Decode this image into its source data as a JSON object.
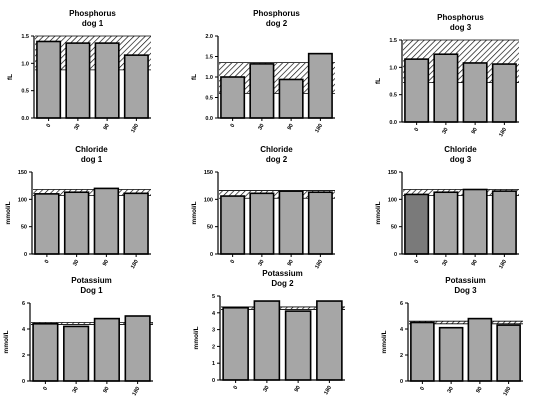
{
  "chart_data": [
    {
      "type": "bar",
      "title": [
        "Phosphorus",
        "dog 1"
      ],
      "ylabel": "fL",
      "categories": [
        "0",
        "30",
        "90",
        "180"
      ],
      "values": [
        1.4,
        1.37,
        1.37,
        1.15
      ],
      "ylim": [
        0,
        1.5
      ],
      "yticks": [
        "0.0",
        "0.5",
        "1.0",
        "1.5"
      ],
      "reference_band": [
        0.88,
        1.5
      ],
      "bar_colors": [
        "#a6a6a6",
        "#a6a6a6",
        "#a6a6a6",
        "#a6a6a6"
      ]
    },
    {
      "type": "bar",
      "title": [
        "Phosphorus",
        "dog 2"
      ],
      "ylabel": "fL",
      "categories": [
        "0",
        "30",
        "90",
        "180"
      ],
      "values": [
        1.0,
        1.32,
        0.94,
        1.57
      ],
      "ylim": [
        0,
        2.0
      ],
      "yticks": [
        "0.0",
        "0.5",
        "1.0",
        "1.5",
        "2.0"
      ],
      "reference_band": [
        0.6,
        1.35
      ],
      "bar_colors": [
        "#a6a6a6",
        "#a6a6a6",
        "#a6a6a6",
        "#a6a6a6"
      ]
    },
    {
      "type": "bar",
      "title": [
        "Phosphorus",
        "dog 3"
      ],
      "ylabel": "fL",
      "categories": [
        "0",
        "30",
        "90",
        "180"
      ],
      "values": [
        1.15,
        1.24,
        1.08,
        1.06
      ],
      "ylim": [
        0,
        1.5
      ],
      "yticks": [
        "0.0",
        "0.5",
        "1.0",
        "1.5"
      ],
      "reference_band": [
        0.72,
        1.5
      ],
      "bar_colors": [
        "#a6a6a6",
        "#a6a6a6",
        "#a6a6a6",
        "#a6a6a6"
      ]
    },
    {
      "type": "bar",
      "title": [
        "Chloride",
        "dog 1"
      ],
      "ylabel": "mmol/L",
      "categories": [
        "0",
        "30",
        "90",
        "180"
      ],
      "values": [
        110,
        113,
        120,
        111
      ],
      "ylim": [
        0,
        150
      ],
      "yticks": [
        "0",
        "50",
        "100",
        "150"
      ],
      "reference_band": [
        107,
        118
      ],
      "bar_colors": [
        "#a6a6a6",
        "#a6a6a6",
        "#a6a6a6",
        "#a6a6a6"
      ]
    },
    {
      "type": "bar",
      "title": [
        "Chloride",
        "dog 2"
      ],
      "ylabel": "mmol/L",
      "categories": [
        "0",
        "30",
        "90",
        "180"
      ],
      "values": [
        106,
        111,
        115,
        113
      ],
      "ylim": [
        0,
        150
      ],
      "yticks": [
        "0",
        "50",
        "100",
        "150"
      ],
      "reference_band": [
        102,
        116
      ],
      "bar_colors": [
        "#a6a6a6",
        "#a6a6a6",
        "#a6a6a6",
        "#a6a6a6"
      ]
    },
    {
      "type": "bar",
      "title": [
        "Chloride",
        "dog 3"
      ],
      "ylabel": "mmol/L",
      "categories": [
        "0",
        "30",
        "90",
        "180"
      ],
      "values": [
        109,
        113,
        118,
        115
      ],
      "ylim": [
        0,
        150
      ],
      "yticks": [
        "0",
        "50",
        "100",
        "150"
      ],
      "reference_band": [
        107,
        118
      ],
      "bar_colors": [
        "#7a7a7a",
        "#a6a6a6",
        "#a6a6a6",
        "#a6a6a6"
      ]
    },
    {
      "type": "bar",
      "title": [
        "Potassium",
        "Dog 1"
      ],
      "ylabel": "mmol/L",
      "categories": [
        "0",
        "30",
        "90",
        "180"
      ],
      "values": [
        4.4,
        4.2,
        4.8,
        5.0
      ],
      "ylim": [
        0,
        6
      ],
      "yticks": [
        "0",
        "2",
        "4",
        "6"
      ],
      "reference_band": [
        4.35,
        4.5
      ],
      "bar_colors": [
        "#a6a6a6",
        "#a6a6a6",
        "#a6a6a6",
        "#a6a6a6"
      ]
    },
    {
      "type": "bar",
      "title": [
        "Potassium",
        "Dog 2"
      ],
      "ylabel": "mmol/L",
      "categories": [
        "0",
        "30",
        "90",
        "180"
      ],
      "values": [
        4.3,
        4.7,
        4.1,
        4.7
      ],
      "ylim": [
        0,
        5
      ],
      "yticks": [
        "0",
        "1",
        "2",
        "3",
        "4",
        "5"
      ],
      "reference_band": [
        4.2,
        4.35
      ],
      "bar_colors": [
        "#a6a6a6",
        "#a6a6a6",
        "#a6a6a6",
        "#a6a6a6"
      ]
    },
    {
      "type": "bar",
      "title": [
        "Potassium",
        "Dog 3"
      ],
      "ylabel": "mmol/L",
      "categories": [
        "0",
        "30",
        "90",
        "180"
      ],
      "values": [
        4.5,
        4.1,
        4.8,
        4.3
      ],
      "ylim": [
        0,
        6
      ],
      "yticks": [
        "0",
        "2",
        "4",
        "6"
      ],
      "reference_band": [
        4.4,
        4.6
      ],
      "bar_colors": [
        "#a6a6a6",
        "#a6a6a6",
        "#a6a6a6",
        "#a6a6a6"
      ]
    }
  ]
}
